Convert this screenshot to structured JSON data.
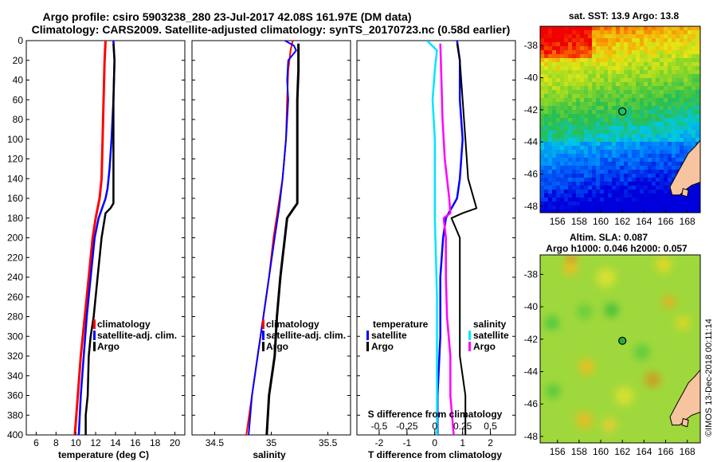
{
  "header": {
    "title_line1": "Argo profile: csiro 5903238_280 23-Jul-2017 42.08S 161.97E (DM data)",
    "title_line2": "Climatology: CARS2009. Satellite-adjusted climatology: synTS_20170723.nc (0.58d earlier)"
  },
  "colors": {
    "climatology": "#ff0000",
    "satellite": "#0000ff",
    "argo": "#000000",
    "salinity_satellite": "#00e5ff",
    "salinity_argo": "#ff00ff",
    "land": "#f7c4a0"
  },
  "chart_data": [
    {
      "type": "line",
      "panel": "temperature",
      "xlabel": "temperature (deg C)",
      "ylabel": "depth",
      "xlim": [
        5,
        21
      ],
      "ylim": [
        400,
        0
      ],
      "xticks": [
        "6",
        "8",
        "10",
        "12",
        "14",
        "16",
        "18",
        "20"
      ],
      "yticks": [
        "0",
        "20",
        "40",
        "60",
        "80",
        "100",
        "120",
        "140",
        "160",
        "180",
        "200",
        "220",
        "240",
        "260",
        "280",
        "300",
        "320",
        "340",
        "360",
        "380",
        "400"
      ],
      "legend": [
        "climatology",
        "satellite-adj. clim.",
        "Argo"
      ],
      "series": [
        {
          "name": "climatology",
          "depth": [
            0,
            20,
            60,
            100,
            140,
            160,
            180,
            200,
            240,
            280,
            320,
            360,
            400
          ],
          "values": [
            13.0,
            12.9,
            12.8,
            12.7,
            12.6,
            12.4,
            12.0,
            11.7,
            11.3,
            10.9,
            10.5,
            10.2,
            9.9
          ]
        },
        {
          "name": "satellite-adj. clim.",
          "depth": [
            0,
            20,
            60,
            100,
            130,
            150,
            160,
            180,
            200,
            240,
            280,
            320,
            360,
            400
          ],
          "values": [
            13.8,
            13.9,
            13.8,
            13.6,
            13.4,
            13.2,
            13.0,
            12.3,
            11.9,
            11.5,
            11.1,
            10.8,
            10.5,
            10.3
          ]
        },
        {
          "name": "Argo",
          "depth": [
            3,
            20,
            60,
            100,
            140,
            165,
            170,
            175,
            200,
            240,
            280,
            300,
            320,
            360,
            380,
            400
          ],
          "values": [
            13.8,
            13.9,
            13.8,
            13.8,
            13.8,
            13.8,
            13.5,
            13.0,
            12.6,
            12.2,
            11.8,
            11.5,
            11.3,
            11.2,
            11.0,
            11.0
          ]
        }
      ]
    },
    {
      "type": "line",
      "panel": "salinity",
      "xlabel": "salinity",
      "ylabel": "depth",
      "xlim": [
        34.3,
        35.7
      ],
      "ylim": [
        400,
        0
      ],
      "xticks": [
        "34.5",
        "35",
        "35.5"
      ],
      "legend": [
        "climatology",
        "satellite-adj. clim.",
        "Argo"
      ],
      "series": [
        {
          "name": "climatology",
          "depth": [
            0,
            10,
            30,
            60,
            100,
            140,
            170,
            200,
            240,
            280,
            320,
            360,
            400
          ],
          "values": [
            35.19,
            35.17,
            35.15,
            35.14,
            35.13,
            35.1,
            35.06,
            35.02,
            34.98,
            34.93,
            34.88,
            34.83,
            34.78
          ]
        },
        {
          "name": "satellite-adj. clim.",
          "depth": [
            0,
            5,
            10,
            20,
            40,
            60,
            100,
            140,
            170,
            200,
            240,
            280,
            320,
            360,
            400
          ],
          "values": [
            35.12,
            35.2,
            35.22,
            35.15,
            35.14,
            35.15,
            35.13,
            35.1,
            35.07,
            35.03,
            34.98,
            34.93,
            34.88,
            34.83,
            34.8
          ]
        },
        {
          "name": "Argo",
          "depth": [
            3,
            30,
            60,
            100,
            140,
            165,
            170,
            180,
            200,
            220,
            240,
            280,
            320,
            360,
            400
          ],
          "values": [
            35.24,
            35.24,
            35.23,
            35.23,
            35.23,
            35.23,
            35.2,
            35.14,
            35.12,
            35.1,
            35.08,
            35.05,
            35.03,
            34.98,
            34.96
          ]
        }
      ]
    },
    {
      "type": "line",
      "panel": "differences",
      "xlabel": "T difference from climatology",
      "x2label": "S difference from climatology",
      "xlim": [
        -2.8,
        2.9
      ],
      "ylim": [
        400,
        0
      ],
      "xticks": [
        "-2",
        "-1",
        "0",
        "1",
        "2"
      ],
      "x2ticks": [
        "-0.5",
        "-0.25",
        "0",
        "0.25",
        "0.5"
      ],
      "legend_temperature_title": "temperature",
      "legend_salinity_title": "salinity",
      "legend_temperature": [
        "satellite",
        "Argo"
      ],
      "legend_salinity": [
        "satellite",
        "Argo"
      ],
      "series": [
        {
          "name": "T satellite",
          "depth": [
            0,
            20,
            60,
            100,
            140,
            160,
            180,
            200,
            240,
            300,
            360,
            400
          ],
          "values": [
            0.8,
            0.9,
            0.9,
            1.0,
            0.9,
            0.8,
            0.4,
            0.3,
            0.2,
            0.2,
            0.1,
            0.1
          ]
        },
        {
          "name": "T Argo",
          "depth": [
            3,
            20,
            60,
            100,
            140,
            160,
            170,
            175,
            180,
            200,
            240,
            280,
            320,
            360,
            400
          ],
          "values": [
            0.8,
            0.9,
            1.0,
            1.1,
            1.2,
            1.4,
            1.5,
            1.0,
            0.6,
            0.9,
            0.9,
            0.9,
            0.9,
            1.1,
            1.1
          ]
        },
        {
          "name": "S satellite",
          "depth": [
            0,
            10,
            30,
            60,
            100,
            140,
            180,
            220,
            260,
            300,
            340,
            400
          ],
          "values": [
            -0.07,
            0.02,
            0.0,
            -0.02,
            0.0,
            0.0,
            0.0,
            0.01,
            0.02,
            0.02,
            0.02,
            0.02
          ]
        },
        {
          "name": "S Argo",
          "depth": [
            3,
            40,
            80,
            120,
            160,
            175,
            180,
            200,
            240,
            280,
            320,
            360,
            400
          ],
          "values": [
            0.05,
            0.06,
            0.07,
            0.09,
            0.13,
            0.14,
            0.08,
            0.1,
            0.1,
            0.11,
            0.14,
            0.14,
            0.17
          ]
        }
      ]
    }
  ],
  "maps": {
    "sst": {
      "title": "sat. SST: 13.9 Argo: 13.8",
      "xticks": [
        "156",
        "158",
        "160",
        "162",
        "164",
        "166",
        "168"
      ],
      "yticks": [
        "-38",
        "-40",
        "-42",
        "-44",
        "-46",
        "-48"
      ],
      "marker": {
        "lon": 162.0,
        "lat": -42.1
      }
    },
    "sla": {
      "title_line1": "Altim. SLA: 0.087",
      "title_line2": "Argo h1000: 0.046 h2000: 0.057",
      "xticks": [
        "156",
        "158",
        "160",
        "162",
        "164",
        "166",
        "168"
      ],
      "yticks": [
        "-38",
        "-40",
        "-42",
        "-44",
        "-46",
        "-48"
      ],
      "marker": {
        "lon": 162.0,
        "lat": -42.1
      }
    }
  },
  "watermark": "©IMOS 13-Dec-2018 00:11:14"
}
